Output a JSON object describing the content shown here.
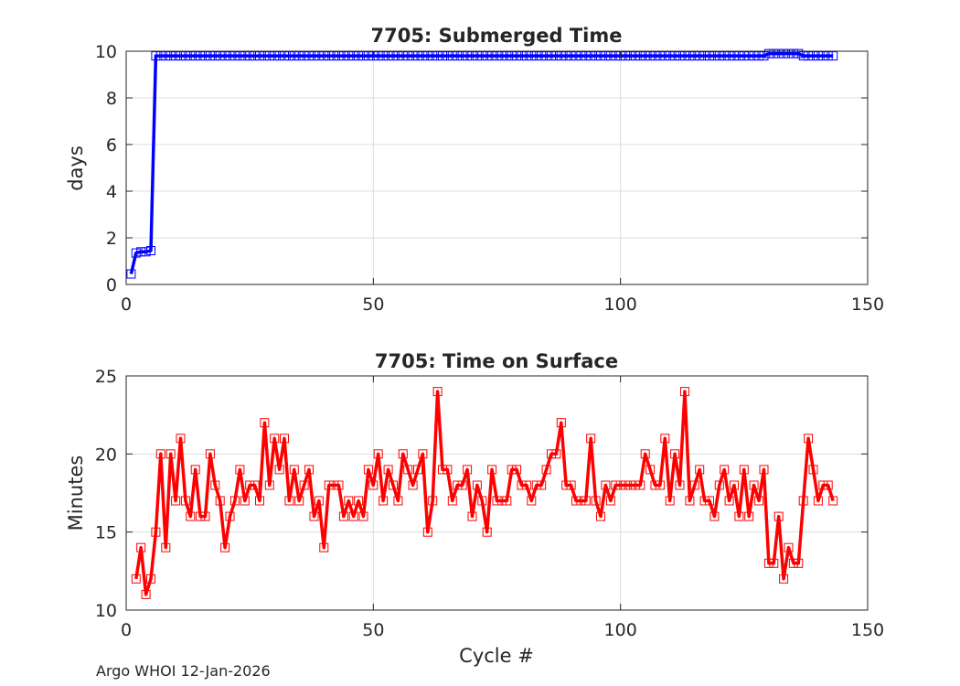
{
  "footer": "Argo WHOI 12-Jan-2026",
  "colors": {
    "top_series": "#0000ff",
    "bottom_series": "#ff0000",
    "grid": "#dcdcdc",
    "axis": "#262626"
  },
  "chart_data": [
    {
      "type": "line",
      "title": "7705: Submerged Time",
      "xlabel": "",
      "ylabel": "days",
      "xlim": [
        0,
        150
      ],
      "ylim": [
        0,
        10
      ],
      "xticks": [
        "0",
        "50",
        "100",
        "150"
      ],
      "yticks": [
        "0",
        "2",
        "4",
        "6",
        "8",
        "10"
      ],
      "grid": true,
      "marker": "square",
      "series": [
        {
          "color": "#0000ff",
          "x": [
            1,
            2,
            3,
            4,
            5,
            6,
            7,
            8,
            9,
            10,
            11,
            12,
            13,
            14,
            15,
            16,
            17,
            18,
            19,
            20,
            21,
            22,
            23,
            24,
            25,
            26,
            27,
            28,
            29,
            30,
            31,
            32,
            33,
            34,
            35,
            36,
            37,
            38,
            39,
            40,
            41,
            42,
            43,
            44,
            45,
            46,
            47,
            48,
            49,
            50,
            51,
            52,
            53,
            54,
            55,
            56,
            57,
            58,
            59,
            60,
            61,
            62,
            63,
            64,
            65,
            66,
            67,
            68,
            69,
            70,
            71,
            72,
            73,
            74,
            75,
            76,
            77,
            78,
            79,
            80,
            81,
            82,
            83,
            84,
            85,
            86,
            87,
            88,
            89,
            90,
            91,
            92,
            93,
            94,
            95,
            96,
            97,
            98,
            99,
            100,
            101,
            102,
            103,
            104,
            105,
            106,
            107,
            108,
            109,
            110,
            111,
            112,
            113,
            114,
            115,
            116,
            117,
            118,
            119,
            120,
            121,
            122,
            123,
            124,
            125,
            126,
            127,
            128,
            129,
            130,
            131,
            132,
            133,
            134,
            135,
            136,
            137,
            138,
            139,
            140,
            141,
            142,
            143
          ],
          "y": [
            0.45,
            1.35,
            1.4,
            1.4,
            1.45,
            9.8,
            9.8,
            9.8,
            9.8,
            9.8,
            9.8,
            9.8,
            9.8,
            9.8,
            9.8,
            9.8,
            9.8,
            9.8,
            9.8,
            9.8,
            9.8,
            9.8,
            9.8,
            9.8,
            9.8,
            9.8,
            9.8,
            9.8,
            9.8,
            9.8,
            9.8,
            9.8,
            9.8,
            9.8,
            9.8,
            9.8,
            9.8,
            9.8,
            9.8,
            9.8,
            9.8,
            9.8,
            9.8,
            9.8,
            9.8,
            9.8,
            9.8,
            9.8,
            9.8,
            9.8,
            9.8,
            9.8,
            9.8,
            9.8,
            9.8,
            9.8,
            9.8,
            9.8,
            9.8,
            9.8,
            9.8,
            9.8,
            9.8,
            9.8,
            9.8,
            9.8,
            9.8,
            9.8,
            9.8,
            9.8,
            9.8,
            9.8,
            9.8,
            9.8,
            9.8,
            9.8,
            9.8,
            9.8,
            9.8,
            9.8,
            9.8,
            9.8,
            9.8,
            9.8,
            9.8,
            9.8,
            9.8,
            9.8,
            9.8,
            9.8,
            9.8,
            9.8,
            9.8,
            9.8,
            9.8,
            9.8,
            9.8,
            9.8,
            9.8,
            9.8,
            9.8,
            9.8,
            9.8,
            9.8,
            9.8,
            9.8,
            9.8,
            9.8,
            9.8,
            9.8,
            9.8,
            9.8,
            9.8,
            9.8,
            9.8,
            9.8,
            9.8,
            9.8,
            9.8,
            9.8,
            9.8,
            9.8,
            9.8,
            9.8,
            9.8,
            9.8,
            9.8,
            9.8,
            9.8,
            9.9,
            9.9,
            9.9,
            9.9,
            9.9,
            9.9,
            9.9,
            9.8,
            9.8,
            9.8,
            9.8,
            9.8,
            9.8,
            9.8
          ]
        }
      ]
    },
    {
      "type": "line",
      "title": "7705: Time on Surface",
      "xlabel": "Cycle #",
      "ylabel": "Minutes",
      "xlim": [
        0,
        150
      ],
      "ylim": [
        10,
        25
      ],
      "xticks": [
        "0",
        "50",
        "100",
        "150"
      ],
      "yticks": [
        "10",
        "15",
        "20",
        "25"
      ],
      "grid": true,
      "marker": "square",
      "series": [
        {
          "color": "#ff0000",
          "x": [
            2,
            3,
            4,
            5,
            6,
            7,
            8,
            9,
            10,
            11,
            12,
            13,
            14,
            15,
            16,
            17,
            18,
            19,
            20,
            21,
            22,
            23,
            24,
            25,
            26,
            27,
            28,
            29,
            30,
            31,
            32,
            33,
            34,
            35,
            36,
            37,
            38,
            39,
            40,
            41,
            42,
            43,
            44,
            45,
            46,
            47,
            48,
            49,
            50,
            51,
            52,
            53,
            54,
            55,
            56,
            57,
            58,
            59,
            60,
            61,
            62,
            63,
            64,
            65,
            66,
            67,
            68,
            69,
            70,
            71,
            72,
            73,
            74,
            75,
            76,
            77,
            78,
            79,
            80,
            81,
            82,
            83,
            84,
            85,
            86,
            87,
            88,
            89,
            90,
            91,
            92,
            93,
            94,
            95,
            96,
            97,
            98,
            99,
            100,
            101,
            102,
            103,
            104,
            105,
            106,
            107,
            108,
            109,
            110,
            111,
            112,
            113,
            114,
            115,
            116,
            117,
            118,
            119,
            120,
            121,
            122,
            123,
            124,
            125,
            126,
            127,
            128,
            129,
            130,
            131,
            132,
            133,
            134,
            135,
            136,
            137,
            138,
            139,
            140,
            141,
            142,
            143
          ],
          "y": [
            12,
            14,
            11,
            12,
            15,
            20,
            14,
            20,
            17,
            21,
            17,
            16,
            19,
            16,
            16,
            20,
            18,
            17,
            14,
            16,
            17,
            19,
            17,
            18,
            18,
            17,
            22,
            18,
            21,
            19,
            21,
            17,
            19,
            17,
            18,
            19,
            16,
            17,
            14,
            18,
            18,
            18,
            16,
            17,
            16,
            17,
            16,
            19,
            18,
            20,
            17,
            19,
            18,
            17,
            20,
            19,
            18,
            19,
            20,
            15,
            17,
            24,
            19,
            19,
            17,
            18,
            18,
            19,
            16,
            18,
            17,
            15,
            19,
            17,
            17,
            17,
            19,
            19,
            18,
            18,
            17,
            18,
            18,
            19,
            20,
            20,
            22,
            18,
            18,
            17,
            17,
            17,
            21,
            17,
            16,
            18,
            17,
            18,
            18,
            18,
            18,
            18,
            18,
            20,
            19,
            18,
            18,
            21,
            17,
            20,
            18,
            24,
            17,
            18,
            19,
            17,
            17,
            16,
            18,
            19,
            17,
            18,
            16,
            19,
            16,
            18,
            17,
            19,
            13,
            13,
            16,
            12,
            14,
            13,
            13,
            17,
            21,
            19,
            17,
            18,
            18,
            17
          ]
        }
      ]
    }
  ]
}
